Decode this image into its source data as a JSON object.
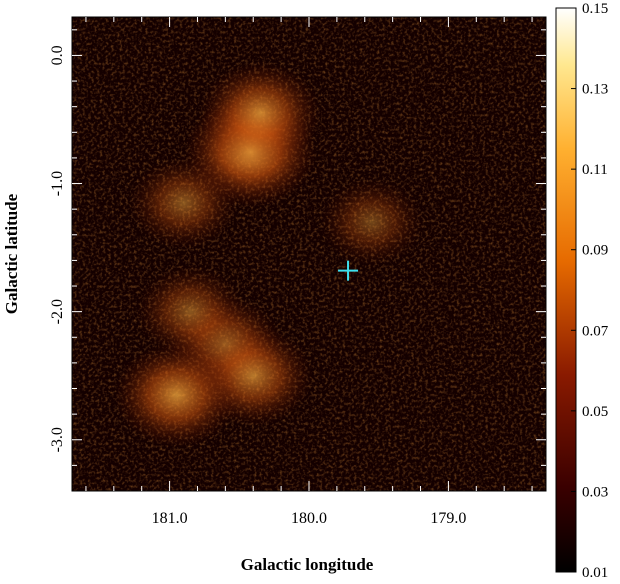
{
  "chart_data": {
    "type": "heatmap",
    "title": "",
    "xlabel": "Galactic longitude",
    "ylabel": "Galactic latitude",
    "xlim": [
      181.7,
      178.3
    ],
    "ylim": [
      -3.4,
      0.3
    ],
    "x_ticks": [
      "181.0",
      "180.0",
      "179.0"
    ],
    "y_ticks": [
      "0.0",
      "-1.0",
      "-2.0",
      "-3.0"
    ],
    "colorbar": {
      "min": 0.01,
      "max": 0.15,
      "tick_labels": [
        "0.15",
        "0.13",
        "0.11",
        "0.09",
        "0.07",
        "0.05",
        "0.03",
        "0.01"
      ],
      "colormap": "heat (black-red-orange-yellow-white)"
    },
    "marker": {
      "symbol": "+",
      "glon": 179.72,
      "glat": -1.68,
      "color": "#3ee0ee"
    },
    "emission_regions": [
      {
        "glon": 180.42,
        "glat": -0.75,
        "intensity": 0.1
      },
      {
        "glon": 180.35,
        "glat": -0.45,
        "intensity": 0.08
      },
      {
        "glon": 180.9,
        "glat": -1.15,
        "intensity": 0.055
      },
      {
        "glon": 179.55,
        "glat": -1.3,
        "intensity": 0.045
      },
      {
        "glon": 180.6,
        "glat": -2.25,
        "intensity": 0.065
      },
      {
        "glon": 180.4,
        "glat": -2.5,
        "intensity": 0.075
      },
      {
        "glon": 180.95,
        "glat": -2.65,
        "intensity": 0.085
      },
      {
        "glon": 180.85,
        "glat": -2.0,
        "intensity": 0.055
      }
    ]
  }
}
